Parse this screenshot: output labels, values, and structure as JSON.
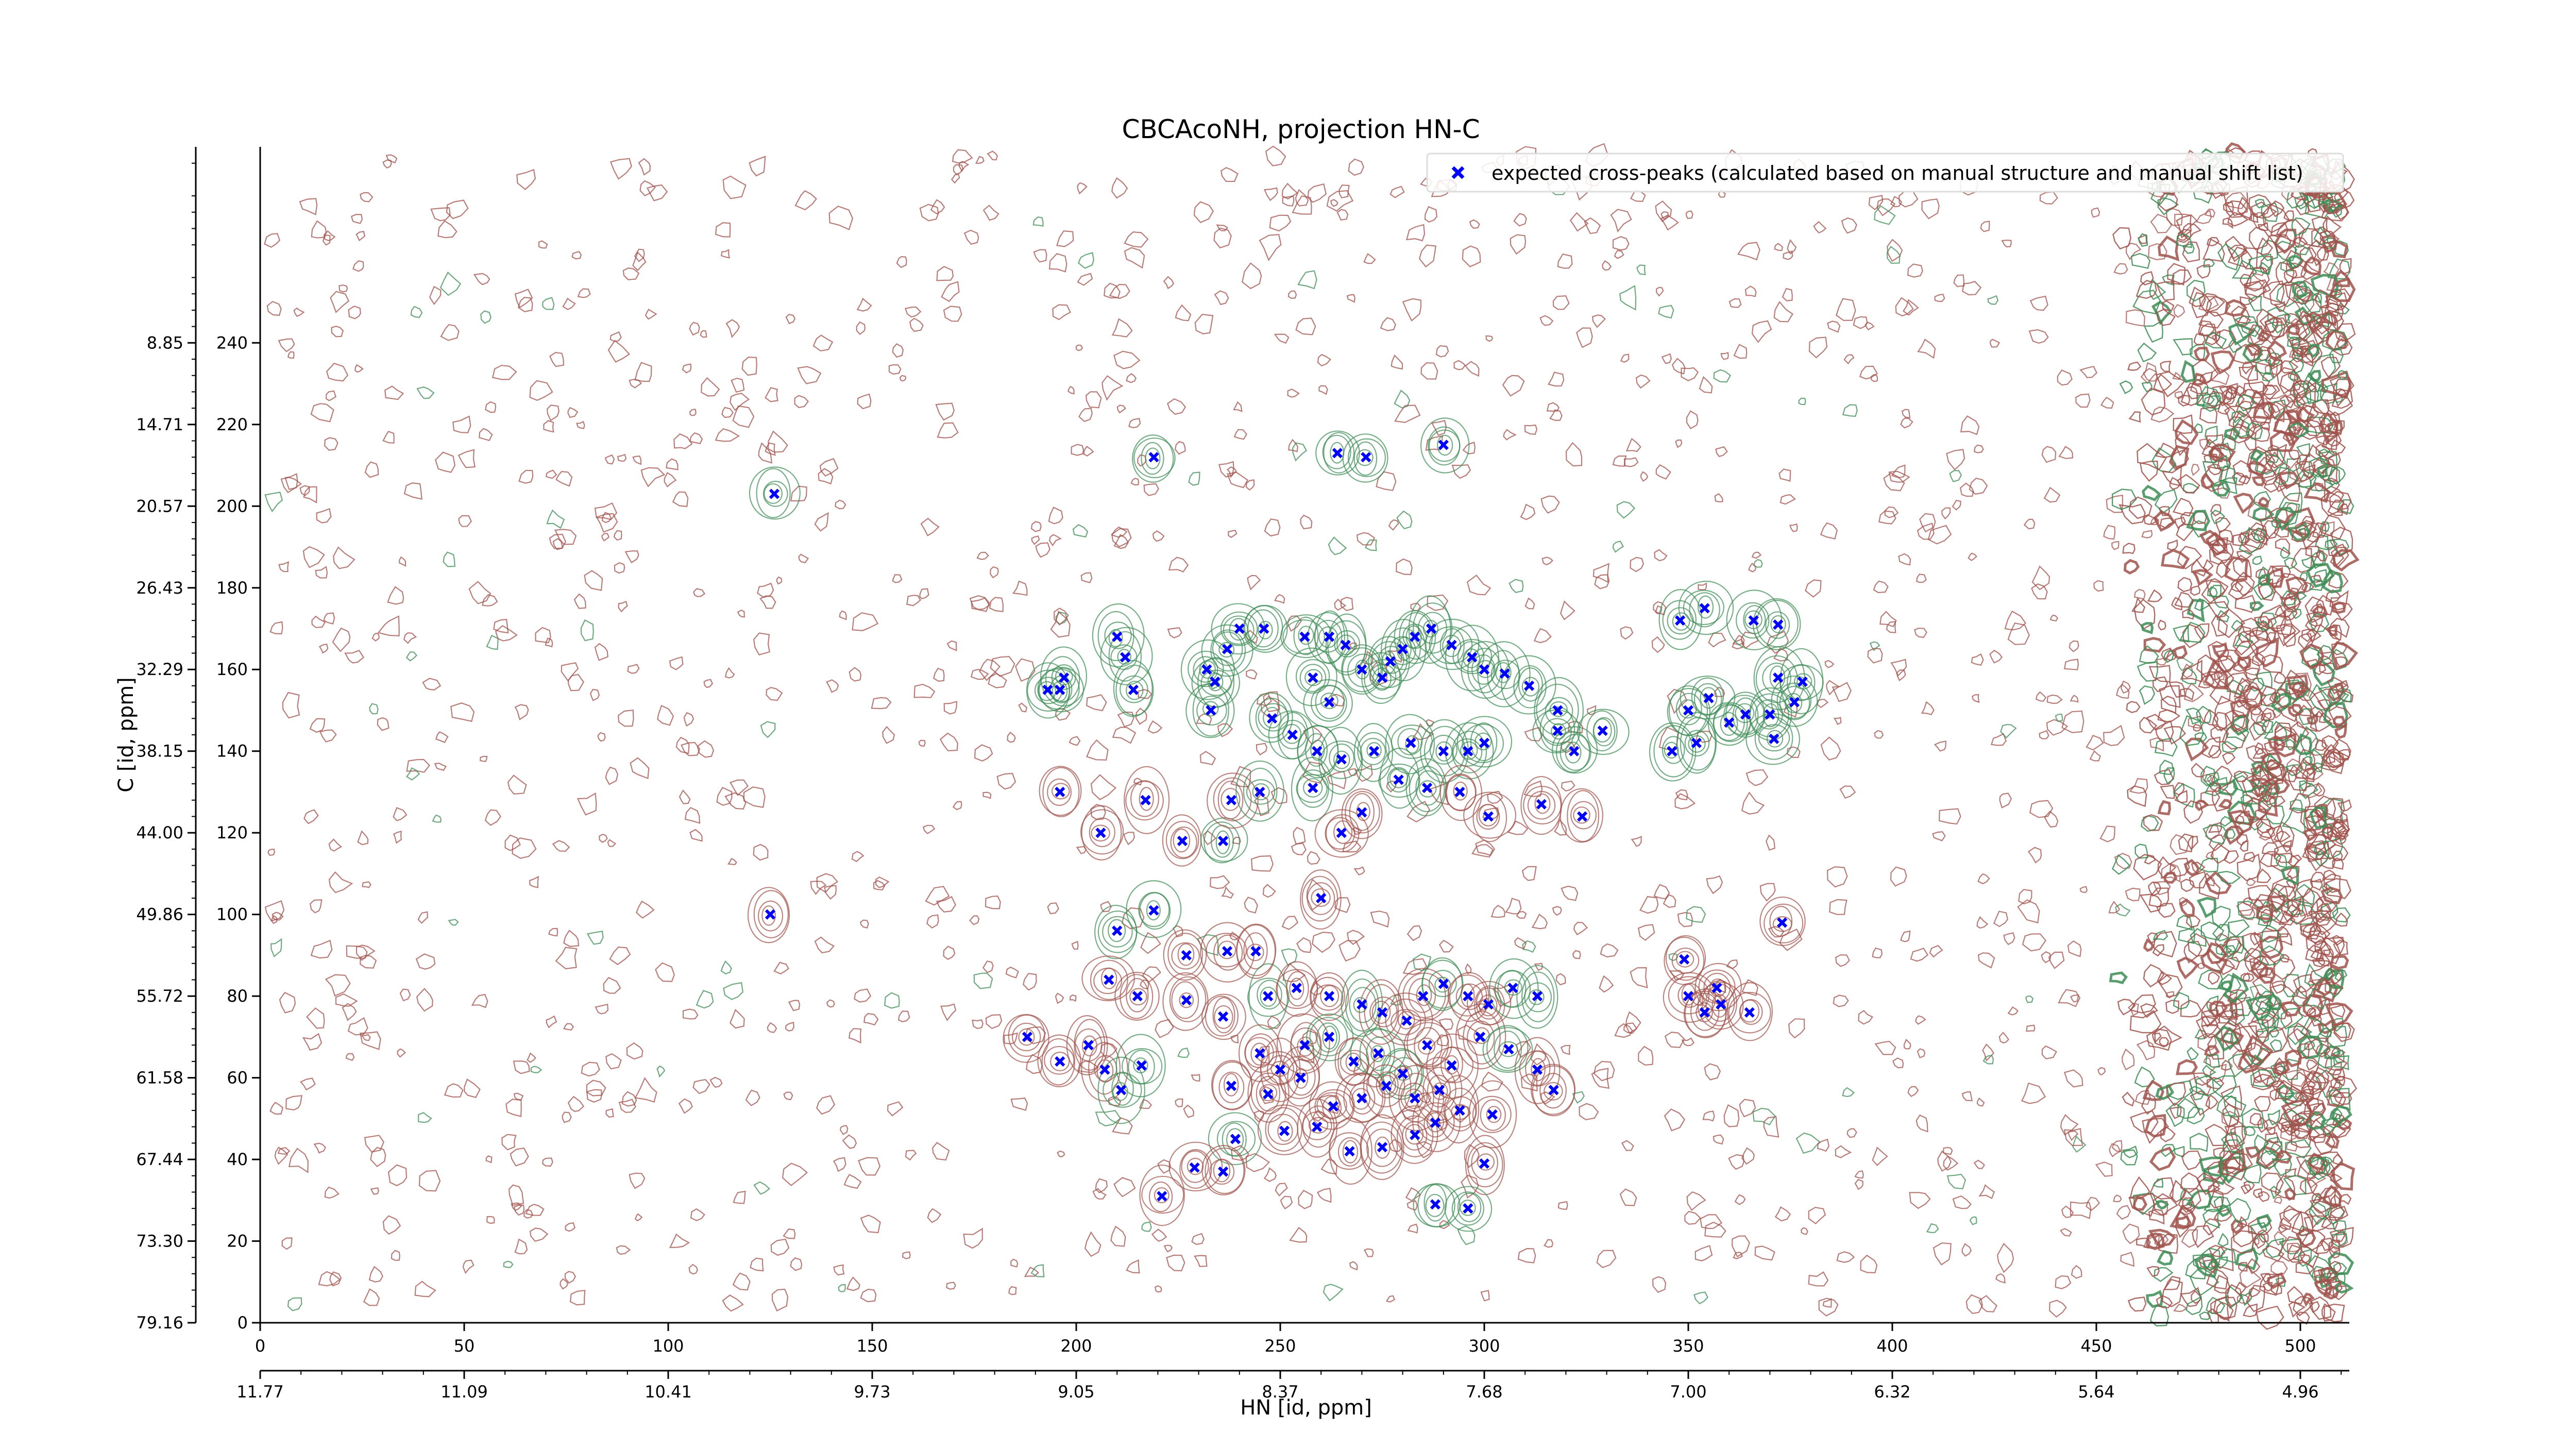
{
  "chart_data": {
    "type": "scatter",
    "title": "CBCAcoNH, projection HN-C",
    "xlabel": "HN [id, ppm]",
    "ylabel": "C [id, ppm]",
    "xlim": [
      0,
      512
    ],
    "ylim": [
      0,
      288
    ],
    "grid": false,
    "legend_position": "top-right",
    "x_ticks": [
      "0",
      "50",
      "100",
      "150",
      "200",
      "250",
      "300",
      "350",
      "400",
      "450",
      "500"
    ],
    "x_tick_values": [
      0,
      50,
      100,
      150,
      200,
      250,
      300,
      350,
      400,
      450,
      500
    ],
    "x2_ticks": [
      "11.77",
      "11.09",
      "10.41",
      "9.73",
      "9.05",
      "8.37",
      "7.68",
      "7.00",
      "6.32",
      "5.64",
      "4.96"
    ],
    "x2_tick_values": [
      0,
      50,
      100,
      150,
      200,
      250,
      300,
      350,
      400,
      450,
      500
    ],
    "y_ticks": [
      "0",
      "20",
      "40",
      "60",
      "80",
      "100",
      "120",
      "140",
      "160",
      "180",
      "200",
      "220",
      "240"
    ],
    "y_tick_values": [
      0,
      20,
      40,
      60,
      80,
      100,
      120,
      140,
      160,
      180,
      200,
      220,
      240
    ],
    "y2_ticks": [
      "79.16",
      "73.30",
      "67.44",
      "61.58",
      "55.72",
      "49.86",
      "44.00",
      "38.15",
      "32.29",
      "26.43",
      "20.57",
      "14.71",
      "8.85"
    ],
    "y2_tick_values": [
      0,
      20,
      40,
      60,
      80,
      100,
      120,
      140,
      160,
      180,
      200,
      220,
      240
    ],
    "colors": {
      "positive_contour": "#a0524b",
      "negative_contour": "#3d8c55",
      "peaks": "#0000ff"
    },
    "series": [
      {
        "name": "expected cross-peaks (calculated based on manual structure and manual shift list)",
        "marker": "x",
        "color": "#0000ff",
        "points": [
          [
            126,
            203
          ],
          [
            125,
            100
          ],
          [
            219,
            212
          ],
          [
            264,
            213
          ],
          [
            271,
            212
          ],
          [
            290,
            215
          ],
          [
            197,
            158
          ],
          [
            193,
            155
          ],
          [
            196,
            155
          ],
          [
            210,
            168
          ],
          [
            212,
            163
          ],
          [
            214,
            155
          ],
          [
            232,
            160
          ],
          [
            234,
            157
          ],
          [
            233,
            150
          ],
          [
            237,
            165
          ],
          [
            240,
            170
          ],
          [
            246,
            170
          ],
          [
            256,
            168
          ],
          [
            262,
            168
          ],
          [
            266,
            166
          ],
          [
            270,
            160
          ],
          [
            275,
            158
          ],
          [
            277,
            162
          ],
          [
            280,
            165
          ],
          [
            283,
            168
          ],
          [
            287,
            170
          ],
          [
            292,
            166
          ],
          [
            297,
            163
          ],
          [
            300,
            160
          ],
          [
            305,
            159
          ],
          [
            311,
            156
          ],
          [
            318,
            150
          ],
          [
            258,
            158
          ],
          [
            262,
            152
          ],
          [
            248,
            148
          ],
          [
            253,
            144
          ],
          [
            259,
            140
          ],
          [
            265,
            138
          ],
          [
            273,
            140
          ],
          [
            282,
            142
          ],
          [
            290,
            140
          ],
          [
            296,
            140
          ],
          [
            300,
            142
          ],
          [
            318,
            145
          ],
          [
            322,
            140
          ],
          [
            329,
            145
          ],
          [
            196,
            130
          ],
          [
            206,
            120
          ],
          [
            217,
            128
          ],
          [
            226,
            118
          ],
          [
            236,
            118
          ],
          [
            238,
            128
          ],
          [
            245,
            130
          ],
          [
            258,
            131
          ],
          [
            265,
            120
          ],
          [
            270,
            125
          ],
          [
            279,
            133
          ],
          [
            286,
            131
          ],
          [
            294,
            130
          ],
          [
            301,
            124
          ],
          [
            314,
            127
          ],
          [
            324,
            124
          ],
          [
            260,
            104
          ],
          [
            219,
            101
          ],
          [
            210,
            96
          ],
          [
            227,
            90
          ],
          [
            237,
            91
          ],
          [
            244,
            91
          ],
          [
            208,
            84
          ],
          [
            215,
            80
          ],
          [
            227,
            79
          ],
          [
            236,
            75
          ],
          [
            247,
            80
          ],
          [
            254,
            82
          ],
          [
            262,
            80
          ],
          [
            270,
            78
          ],
          [
            275,
            76
          ],
          [
            281,
            74
          ],
          [
            285,
            80
          ],
          [
            290,
            83
          ],
          [
            296,
            80
          ],
          [
            301,
            78
          ],
          [
            307,
            82
          ],
          [
            313,
            80
          ],
          [
            245,
            66
          ],
          [
            250,
            62
          ],
          [
            256,
            68
          ],
          [
            262,
            70
          ],
          [
            268,
            64
          ],
          [
            274,
            66
          ],
          [
            280,
            61
          ],
          [
            286,
            68
          ],
          [
            292,
            63
          ],
          [
            299,
            70
          ],
          [
            306,
            67
          ],
          [
            313,
            62
          ],
          [
            238,
            58
          ],
          [
            247,
            56
          ],
          [
            255,
            60
          ],
          [
            263,
            53
          ],
          [
            270,
            55
          ],
          [
            276,
            58
          ],
          [
            283,
            55
          ],
          [
            289,
            57
          ],
          [
            294,
            52
          ],
          [
            302,
            51
          ],
          [
            317,
            57
          ],
          [
            207,
            62
          ],
          [
            203,
            68
          ],
          [
            188,
            70
          ],
          [
            196,
            64
          ],
          [
            211,
            57
          ],
          [
            216,
            63
          ],
          [
            239,
            45
          ],
          [
            251,
            47
          ],
          [
            259,
            48
          ],
          [
            267,
            42
          ],
          [
            275,
            43
          ],
          [
            283,
            46
          ],
          [
            288,
            49
          ],
          [
            300,
            39
          ],
          [
            229,
            38
          ],
          [
            236,
            37
          ],
          [
            221,
            31
          ],
          [
            288,
            29
          ],
          [
            296,
            28
          ],
          [
            349,
            89
          ],
          [
            350,
            80
          ],
          [
            357,
            82
          ],
          [
            358,
            78
          ],
          [
            354,
            76
          ],
          [
            365,
            76
          ],
          [
            373,
            98
          ],
          [
            350,
            150
          ],
          [
            355,
            153
          ],
          [
            360,
            147
          ],
          [
            346,
            140
          ],
          [
            352,
            142
          ],
          [
            364,
            149
          ],
          [
            370,
            149
          ],
          [
            376,
            152
          ],
          [
            378,
            157
          ],
          [
            372,
            158
          ],
          [
            371,
            143
          ],
          [
            366,
            172
          ],
          [
            372,
            171
          ],
          [
            348,
            172
          ],
          [
            354,
            175
          ]
        ]
      }
    ]
  }
}
